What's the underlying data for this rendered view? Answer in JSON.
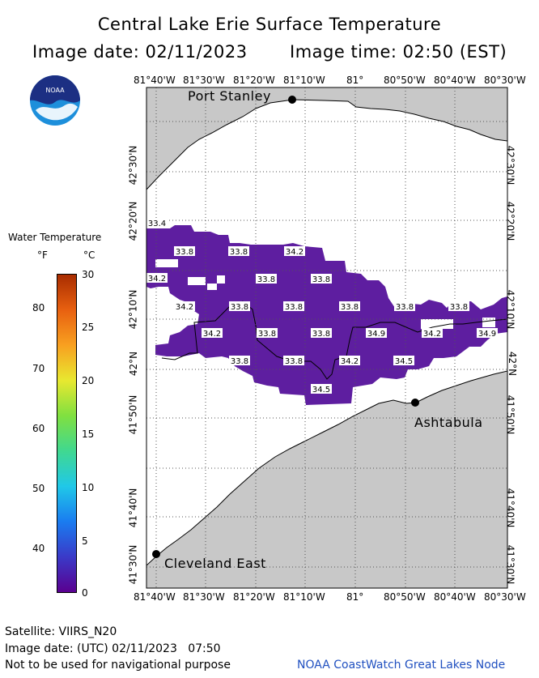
{
  "header": {
    "title": "Central Lake Erie Surface Temperature",
    "image_date": "Image date: 02/11/2023",
    "image_time": "Image time: 02:50 (EST)"
  },
  "logo": {
    "text": "NOAA"
  },
  "legend": {
    "title": "Water Temperature",
    "unit_f": "°F",
    "unit_c": "°C",
    "fahrenheit_ticks": [
      "80",
      "70",
      "60",
      "50",
      "40"
    ],
    "celsius_ticks": [
      "30",
      "25",
      "20",
      "15",
      "10",
      "5",
      "0"
    ],
    "colors": [
      "#5a0090",
      "#3a3ac8",
      "#1a7cf0",
      "#20c8e8",
      "#40d890",
      "#80e040",
      "#e8e830",
      "#f8a020",
      "#e86010",
      "#a82c00"
    ]
  },
  "map": {
    "top_axis": [
      "81°40'W",
      "81°30'W",
      "81°20'W",
      "81°10'W",
      "81°",
      "80°50'W",
      "80°40'W",
      "80°30'W"
    ],
    "bottom_axis": [
      "81°40'W",
      "81°30'W",
      "81°20'W",
      "81°10'W",
      "81°",
      "80°50'W",
      "80°40'W",
      "80°30'W"
    ],
    "left_axis": [
      "42°30'N",
      "42°20'N",
      "42°10'N",
      "42°N",
      "41°50'N",
      "41°40'N",
      "41°30'N"
    ],
    "right_axis": [
      "42°30'N",
      "42°20'N",
      "42°10'N",
      "42°N",
      "41°50'N",
      "41°40'N",
      "41°30'N"
    ],
    "land_color": "#c8c8c8",
    "water_color": "#5e1ea0",
    "cities": {
      "port_stanley": "Port Stanley",
      "ashtabula": "Ashtabula",
      "cleveland_east": "Cleveland East"
    },
    "temperature_labels": [
      "33.4",
      "33.8",
      "33.8",
      "34.2",
      "34.2",
      "33.8",
      "33.8",
      "34.2",
      "33.8",
      "33.8",
      "33.8",
      "33.8",
      "33.8",
      "34.2",
      "33.8",
      "33.8",
      "34.9",
      "34.2",
      "34.9",
      "33.8",
      "33.8",
      "34.2",
      "34.5",
      "34.5"
    ]
  },
  "footer": {
    "satellite": "Satellite: VIIRS_N20",
    "utc_date": "Image date: (UTC) 02/11/2023   07:50",
    "disclaimer": "Not to be used for navigational purpose",
    "credit": "NOAA CoastWatch Great Lakes Node",
    "credit_color": "#2050c0"
  }
}
